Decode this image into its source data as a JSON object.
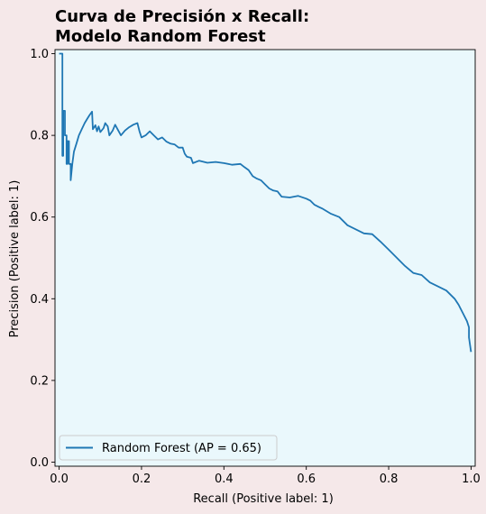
{
  "chart_data": {
    "type": "line",
    "title_lines": [
      "Curva de Precisión x Recall:",
      "Modelo Random Forest"
    ],
    "xlabel": "Recall (Positive label: 1)",
    "ylabel": "Precision (Positive label: 1)",
    "xlim": [
      -0.01,
      1.01
    ],
    "ylim": [
      -0.01,
      1.01
    ],
    "x_ticks": [
      0.0,
      0.2,
      0.4,
      0.6,
      0.8,
      1.0
    ],
    "y_ticks": [
      0.0,
      0.2,
      0.4,
      0.6,
      0.8,
      1.0
    ],
    "x_tick_labels": [
      "0.0",
      "0.2",
      "0.4",
      "0.6",
      "0.8",
      "1.0"
    ],
    "y_tick_labels": [
      "0.0",
      "0.2",
      "0.4",
      "0.6",
      "0.8",
      "1.0"
    ],
    "grid": false,
    "legend_position": "lower-left",
    "plot_background": "#eaf8fc",
    "figure_background": "#f5e8e9",
    "series": [
      {
        "name": "Random Forest (AP = 0.65)",
        "color": "#1f77b4",
        "points": [
          [
            0.0,
            1.0
          ],
          [
            0.008,
            1.0
          ],
          [
            0.008,
            0.75
          ],
          [
            0.01,
            0.75
          ],
          [
            0.01,
            0.86
          ],
          [
            0.014,
            0.86
          ],
          [
            0.014,
            0.8
          ],
          [
            0.018,
            0.8
          ],
          [
            0.018,
            0.73
          ],
          [
            0.02,
            0.73
          ],
          [
            0.02,
            0.786
          ],
          [
            0.024,
            0.786
          ],
          [
            0.024,
            0.73
          ],
          [
            0.028,
            0.73
          ],
          [
            0.028,
            0.69
          ],
          [
            0.032,
            0.73
          ],
          [
            0.036,
            0.76
          ],
          [
            0.042,
            0.78
          ],
          [
            0.048,
            0.8
          ],
          [
            0.055,
            0.815
          ],
          [
            0.062,
            0.83
          ],
          [
            0.068,
            0.84
          ],
          [
            0.074,
            0.85
          ],
          [
            0.08,
            0.858
          ],
          [
            0.082,
            0.815
          ],
          [
            0.088,
            0.825
          ],
          [
            0.092,
            0.81
          ],
          [
            0.096,
            0.822
          ],
          [
            0.1,
            0.808
          ],
          [
            0.108,
            0.818
          ],
          [
            0.112,
            0.83
          ],
          [
            0.118,
            0.822
          ],
          [
            0.122,
            0.8
          ],
          [
            0.13,
            0.812
          ],
          [
            0.136,
            0.826
          ],
          [
            0.142,
            0.815
          ],
          [
            0.15,
            0.8
          ],
          [
            0.16,
            0.812
          ],
          [
            0.17,
            0.82
          ],
          [
            0.18,
            0.826
          ],
          [
            0.19,
            0.83
          ],
          [
            0.195,
            0.81
          ],
          [
            0.2,
            0.795
          ],
          [
            0.21,
            0.8
          ],
          [
            0.22,
            0.81
          ],
          [
            0.23,
            0.8
          ],
          [
            0.24,
            0.79
          ],
          [
            0.25,
            0.795
          ],
          [
            0.26,
            0.785
          ],
          [
            0.27,
            0.78
          ],
          [
            0.28,
            0.778
          ],
          [
            0.29,
            0.77
          ],
          [
            0.3,
            0.77
          ],
          [
            0.305,
            0.755
          ],
          [
            0.31,
            0.748
          ],
          [
            0.32,
            0.745
          ],
          [
            0.325,
            0.732
          ],
          [
            0.34,
            0.738
          ],
          [
            0.36,
            0.733
          ],
          [
            0.38,
            0.735
          ],
          [
            0.4,
            0.732
          ],
          [
            0.42,
            0.728
          ],
          [
            0.44,
            0.73
          ],
          [
            0.45,
            0.722
          ],
          [
            0.46,
            0.715
          ],
          [
            0.47,
            0.7
          ],
          [
            0.48,
            0.694
          ],
          [
            0.49,
            0.69
          ],
          [
            0.5,
            0.68
          ],
          [
            0.51,
            0.67
          ],
          [
            0.52,
            0.665
          ],
          [
            0.53,
            0.663
          ],
          [
            0.54,
            0.65
          ],
          [
            0.56,
            0.648
          ],
          [
            0.58,
            0.652
          ],
          [
            0.6,
            0.645
          ],
          [
            0.61,
            0.64
          ],
          [
            0.62,
            0.63
          ],
          [
            0.63,
            0.625
          ],
          [
            0.64,
            0.62
          ],
          [
            0.66,
            0.608
          ],
          [
            0.68,
            0.6
          ],
          [
            0.7,
            0.58
          ],
          [
            0.72,
            0.57
          ],
          [
            0.74,
            0.56
          ],
          [
            0.76,
            0.558
          ],
          [
            0.78,
            0.54
          ],
          [
            0.8,
            0.52
          ],
          [
            0.82,
            0.5
          ],
          [
            0.84,
            0.48
          ],
          [
            0.86,
            0.463
          ],
          [
            0.88,
            0.458
          ],
          [
            0.9,
            0.44
          ],
          [
            0.92,
            0.43
          ],
          [
            0.94,
            0.42
          ],
          [
            0.96,
            0.4
          ],
          [
            0.97,
            0.385
          ],
          [
            0.98,
            0.365
          ],
          [
            0.99,
            0.345
          ],
          [
            0.995,
            0.33
          ],
          [
            0.995,
            0.305
          ],
          [
            1.0,
            0.27
          ]
        ]
      }
    ]
  }
}
